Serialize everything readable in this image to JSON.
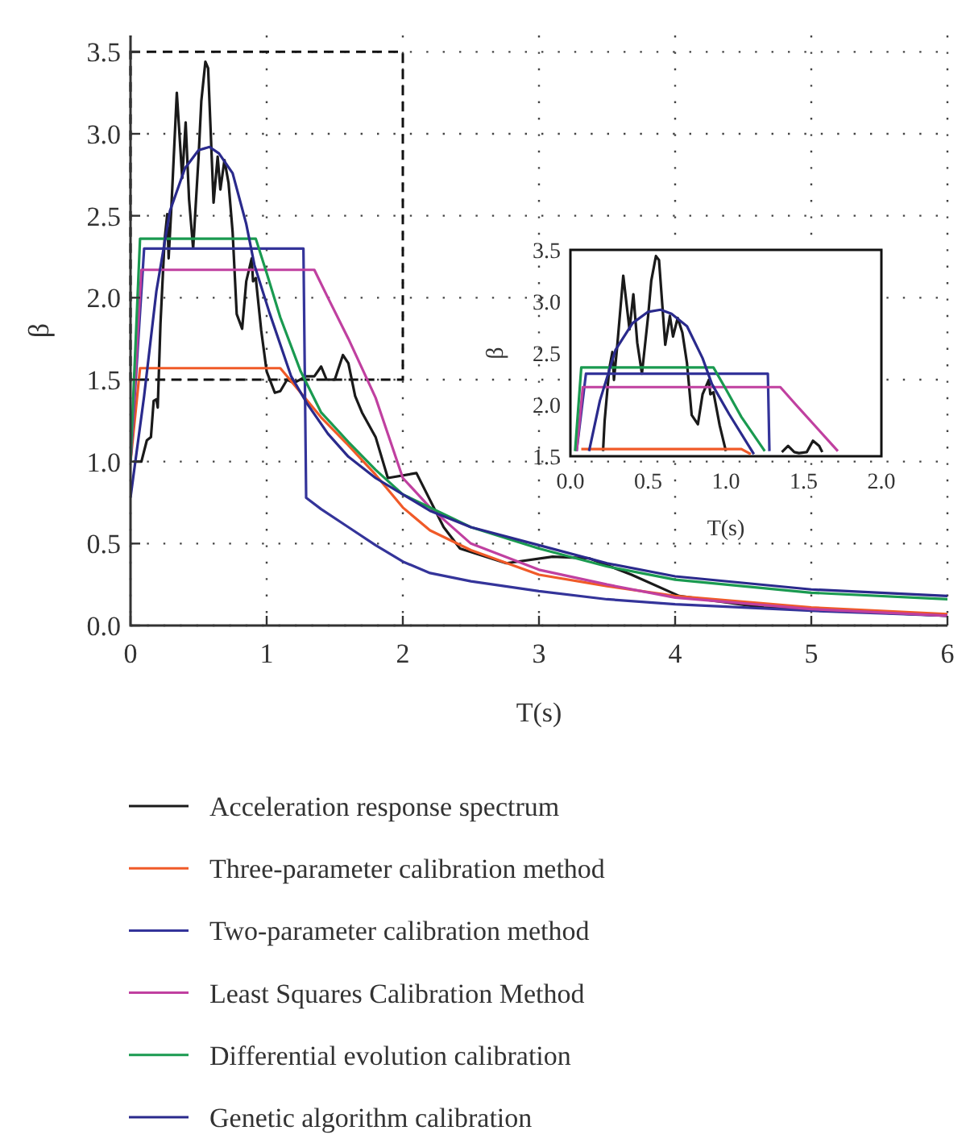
{
  "chart_data": [
    {
      "type": "line",
      "xlabel": "T(s)",
      "ylabel": "β",
      "xlim": [
        0,
        6
      ],
      "ylim": [
        0,
        3.6
      ],
      "xticks": [
        0,
        1,
        2,
        3,
        4,
        5,
        6
      ],
      "yticks": [
        {
          "value": 0,
          "label": "0.0"
        },
        {
          "value": 0.5,
          "label": "0.5"
        },
        {
          "value": 1,
          "label": "1.0"
        },
        {
          "value": 1.5,
          "label": "1.5"
        },
        {
          "value": 2,
          "label": "2.0"
        },
        {
          "value": 2.5,
          "label": "2.5"
        },
        {
          "value": 3,
          "label": "3.0"
        },
        {
          "value": 3.5,
          "label": "3.5"
        }
      ],
      "grid": true,
      "legend": "bottom",
      "series": [
        {
          "name": "Acceleration response spectrum",
          "color": "#1a1a1a",
          "x": [
            0.02,
            0.08,
            0.12,
            0.15,
            0.17,
            0.19,
            0.2,
            0.22,
            0.25,
            0.27,
            0.28,
            0.3,
            0.34,
            0.38,
            0.405,
            0.43,
            0.46,
            0.5,
            0.52,
            0.55,
            0.57,
            0.61,
            0.64,
            0.66,
            0.69,
            0.72,
            0.75,
            0.78,
            0.82,
            0.85,
            0.89,
            0.9,
            0.92,
            0.96,
            1.0,
            1.06,
            1.1,
            1.15,
            1.2,
            1.29,
            1.35,
            1.4,
            1.44,
            1.5,
            1.56,
            1.6,
            1.65,
            1.7,
            1.8,
            1.89,
            2.1,
            2.3,
            2.42,
            2.76,
            3.1,
            3.37,
            3.68,
            4.03,
            4.65,
            6.0
          ],
          "values": [
            1.0,
            1.0,
            1.13,
            1.15,
            1.37,
            1.38,
            1.33,
            1.84,
            2.35,
            2.51,
            2.24,
            2.55,
            3.25,
            2.73,
            3.07,
            2.6,
            2.3,
            2.86,
            3.2,
            3.44,
            3.4,
            2.58,
            2.86,
            2.66,
            2.84,
            2.7,
            2.4,
            1.9,
            1.81,
            2.1,
            2.24,
            2.1,
            2.12,
            1.8,
            1.55,
            1.42,
            1.43,
            1.5,
            1.48,
            1.52,
            1.52,
            1.58,
            1.5,
            1.5,
            1.65,
            1.6,
            1.4,
            1.3,
            1.15,
            0.9,
            0.93,
            0.6,
            0.47,
            0.38,
            0.42,
            0.41,
            0.31,
            0.18,
            0.11,
            0.06
          ]
        },
        {
          "name": "Three-parameter calibration method",
          "color": "#f05a28",
          "x": [
            0,
            0.07,
            1.1,
            1.2,
            1.4,
            1.6,
            1.8,
            2.0,
            2.2,
            2.5,
            3.0,
            3.5,
            4.0,
            5.0,
            6.0
          ],
          "values": [
            1.0,
            1.57,
            1.57,
            1.47,
            1.27,
            1.1,
            0.92,
            0.72,
            0.58,
            0.46,
            0.31,
            0.24,
            0.18,
            0.11,
            0.07
          ]
        },
        {
          "name": "Two-parameter calibration method",
          "color": "#34349a",
          "x": [
            0,
            0.1,
            1.27,
            1.29,
            1.4,
            1.6,
            1.8,
            2.0,
            2.2,
            2.5,
            3.0,
            3.5,
            4.0,
            5.0,
            6.0
          ],
          "values": [
            1.0,
            2.3,
            2.3,
            0.78,
            0.71,
            0.6,
            0.49,
            0.39,
            0.32,
            0.27,
            0.21,
            0.16,
            0.13,
            0.09,
            0.06
          ]
        },
        {
          "name": "Least Squares Calibration Method",
          "color": "#c040a0",
          "x": [
            0,
            0.08,
            1.35,
            1.45,
            1.6,
            1.8,
            2.0,
            2.2,
            2.5,
            3.0,
            3.5,
            4.0,
            5.0,
            6.0
          ],
          "values": [
            1.0,
            2.17,
            2.17,
            2.0,
            1.75,
            1.39,
            0.9,
            0.72,
            0.5,
            0.34,
            0.25,
            0.17,
            0.1,
            0.06
          ]
        },
        {
          "name": "Differential evolution calibration",
          "color": "#1a9a50",
          "x": [
            0,
            0.07,
            0.92,
            1.0,
            1.1,
            1.25,
            1.4,
            1.6,
            1.8,
            2.0,
            2.5,
            3.0,
            3.5,
            4.0,
            5.0,
            6.0
          ],
          "values": [
            1.0,
            2.36,
            2.36,
            2.15,
            1.88,
            1.55,
            1.3,
            1.12,
            0.95,
            0.8,
            0.6,
            0.47,
            0.36,
            0.28,
            0.2,
            0.16
          ]
        },
        {
          "name": "Genetic algorithm calibration",
          "color": "#2a2a8c",
          "x": [
            0,
            0.1,
            0.19,
            0.29,
            0.4,
            0.5,
            0.58,
            0.65,
            0.75,
            0.85,
            0.91,
            1.02,
            1.18,
            1.3,
            1.45,
            1.6,
            1.8,
            2.0,
            2.2,
            2.5,
            3.0,
            3.5,
            4.0,
            5.0,
            6.0
          ],
          "values": [
            0.78,
            1.4,
            2.04,
            2.53,
            2.79,
            2.9,
            2.92,
            2.88,
            2.76,
            2.45,
            2.2,
            1.91,
            1.52,
            1.35,
            1.17,
            1.03,
            0.9,
            0.8,
            0.7,
            0.6,
            0.49,
            0.38,
            0.3,
            0.22,
            0.18
          ]
        }
      ]
    },
    {
      "type": "line",
      "xlabel": "T(s)",
      "ylabel": "β",
      "xlim": [
        0,
        2
      ],
      "ylim": [
        1.5,
        3.5
      ],
      "xticks": [
        {
          "value": 0,
          "label": "0.0"
        },
        {
          "value": 0.5,
          "label": "0.5"
        },
        {
          "value": 1,
          "label": "1.0"
        },
        {
          "value": 1.5,
          "label": "1.5"
        },
        {
          "value": 2,
          "label": "2.0"
        }
      ],
      "yticks": [
        {
          "value": 1.5,
          "label": "1.5"
        },
        {
          "value": 2,
          "label": "2.0"
        },
        {
          "value": 2.5,
          "label": "2.5"
        },
        {
          "value": 3,
          "label": "3.0"
        },
        {
          "value": 3.5,
          "label": "3.5"
        }
      ],
      "series": [
        {
          "color": "#1a1a1a",
          "x": [
            0.21,
            0.22,
            0.25,
            0.27,
            0.28,
            0.3,
            0.34,
            0.38,
            0.405,
            0.43,
            0.46,
            0.5,
            0.52,
            0.55,
            0.57,
            0.61,
            0.64,
            0.66,
            0.69,
            0.72,
            0.75,
            0.78,
            0.82,
            0.85,
            0.89,
            0.9,
            0.92,
            0.96,
            1.0,
            1.1,
            1.36,
            1.4,
            1.44,
            1.47,
            1.52,
            1.56,
            1.6,
            1.62
          ],
          "values": [
            1.55,
            1.84,
            2.35,
            2.51,
            2.24,
            2.55,
            3.25,
            2.73,
            3.07,
            2.6,
            2.3,
            2.86,
            3.2,
            3.44,
            3.4,
            2.58,
            2.86,
            2.66,
            2.84,
            2.7,
            2.4,
            1.9,
            1.81,
            2.1,
            2.24,
            2.1,
            2.12,
            1.8,
            1.55,
            null,
            1.54,
            1.6,
            1.54,
            1.53,
            1.54,
            1.65,
            1.6,
            1.54
          ]
        },
        {
          "color": "#f05a28",
          "x": [
            0.07,
            1.1,
            1.16
          ],
          "values": [
            1.57,
            1.57,
            1.52
          ]
        },
        {
          "color": "#34349a",
          "x": [
            0.04,
            0.1,
            1.27,
            1.28
          ],
          "values": [
            1.55,
            2.3,
            2.3,
            1.55
          ]
        },
        {
          "color": "#c040a0",
          "x": [
            0.04,
            0.08,
            1.35,
            1.45,
            1.6,
            1.72
          ],
          "values": [
            1.55,
            2.17,
            2.17,
            2.0,
            1.75,
            1.55
          ]
        },
        {
          "color": "#1a9a50",
          "x": [
            0.03,
            0.07,
            0.92,
            1.0,
            1.1,
            1.25
          ],
          "values": [
            1.55,
            2.36,
            2.36,
            2.15,
            1.88,
            1.55
          ]
        },
        {
          "color": "#2a2a8c",
          "x": [
            0.12,
            0.19,
            0.29,
            0.4,
            0.5,
            0.58,
            0.65,
            0.75,
            0.85,
            0.91,
            1.02,
            1.18
          ],
          "values": [
            1.55,
            2.04,
            2.53,
            2.79,
            2.9,
            2.92,
            2.88,
            2.76,
            2.45,
            2.2,
            1.91,
            1.52
          ]
        }
      ]
    }
  ]
}
